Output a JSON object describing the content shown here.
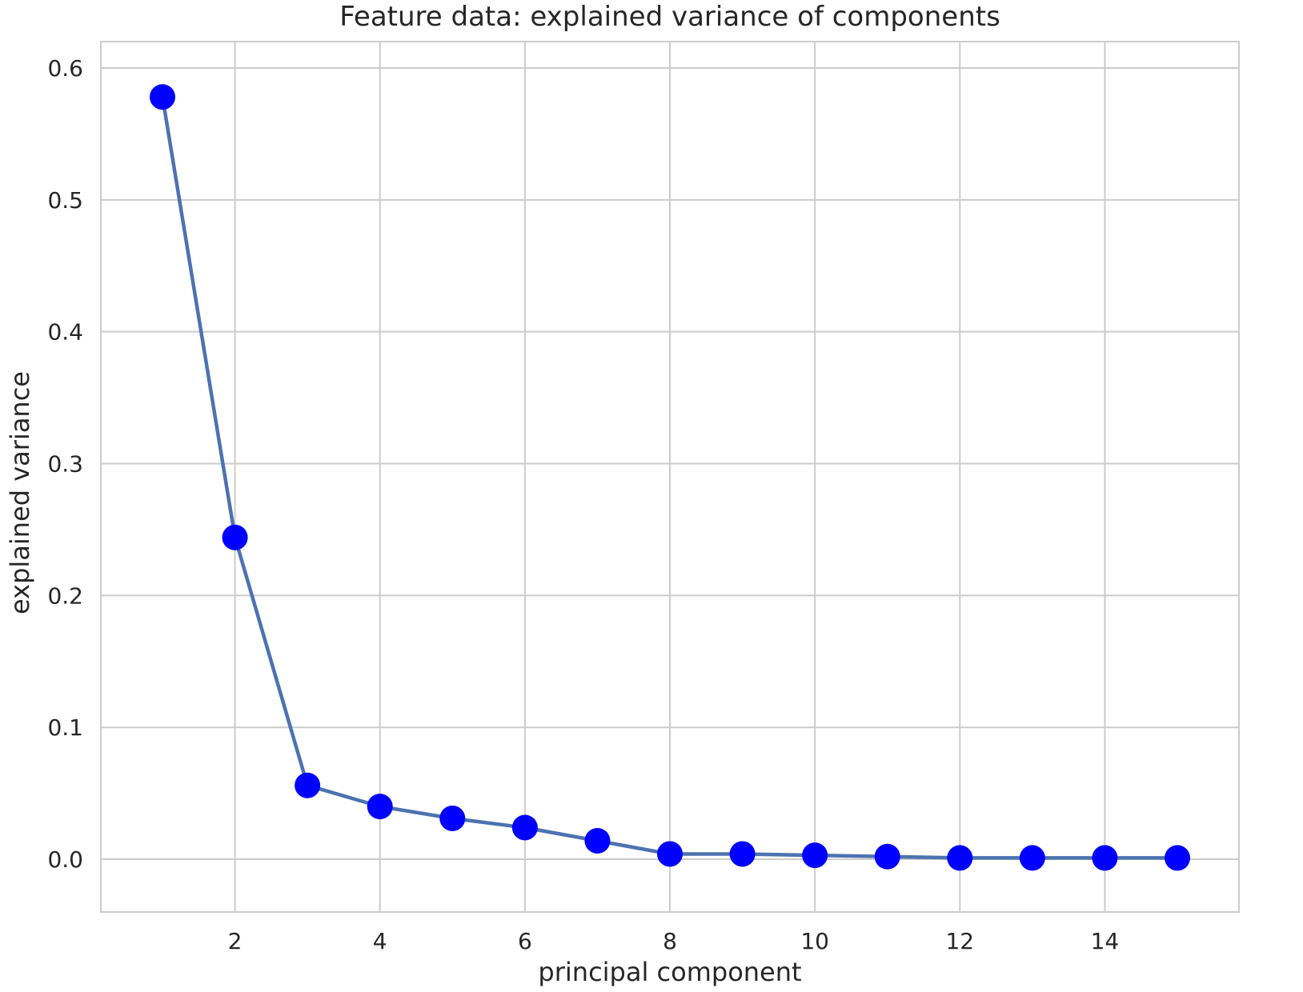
{
  "chart_data": {
    "type": "line",
    "title": "Feature data: explained variance of components",
    "xlabel": "principal component",
    "ylabel": "explained variance",
    "xlim": [
      0.15,
      15.85
    ],
    "ylim": [
      -0.04,
      0.62
    ],
    "xticks": [
      2,
      4,
      6,
      8,
      10,
      12,
      14
    ],
    "yticks": [
      0.0,
      0.1,
      0.2,
      0.3,
      0.4,
      0.5,
      0.6
    ],
    "ytick_labels": [
      "0.0",
      "0.1",
      "0.2",
      "0.3",
      "0.4",
      "0.5",
      "0.6"
    ],
    "grid": true,
    "x": [
      1,
      2,
      3,
      4,
      5,
      6,
      7,
      8,
      9,
      10,
      11,
      12,
      13,
      14,
      15
    ],
    "series": [
      {
        "values": [
          0.578,
          0.244,
          0.056,
          0.04,
          0.031,
          0.024,
          0.014,
          0.004,
          0.004,
          0.003,
          0.002,
          0.001,
          0.001,
          0.001,
          0.001
        ],
        "line_color": "#4c72b0",
        "marker_color": "#0000ff"
      }
    ]
  }
}
